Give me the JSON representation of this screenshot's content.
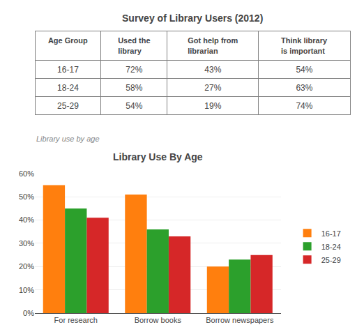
{
  "chart_data": [
    {
      "type": "table",
      "title": "Survey of Library Users (2012)",
      "categories": [
        "Age Group",
        "Used the\nlibrary",
        "Got help from\nlibrarian",
        "Think library\nis important"
      ],
      "rows": [
        [
          "16-17",
          "72%",
          "43%",
          "54%"
        ],
        [
          "18-24",
          "58%",
          "27%",
          "63%"
        ],
        [
          "25-29",
          "54%",
          "19%",
          "74%"
        ]
      ]
    },
    {
      "type": "bar",
      "title": "Library Use By Age",
      "subtitle": "Library use by age",
      "categories": [
        "For research",
        "Borrow books",
        "Borrow newspapers"
      ],
      "series": [
        {
          "name": "16-17",
          "values": [
            55,
            51,
            20
          ]
        },
        {
          "name": "18-24",
          "values": [
            45,
            36,
            23
          ]
        },
        {
          "name": "25-29",
          "values": [
            41,
            33,
            25
          ]
        }
      ],
      "ylim": [
        0,
        60
      ],
      "yticks": [
        {
          "value": 0,
          "label": "0%"
        },
        {
          "value": 10,
          "label": "10%"
        },
        {
          "value": 20,
          "label": "20%"
        },
        {
          "value": 30,
          "label": "30%"
        },
        {
          "value": 40,
          "label": "40%"
        },
        {
          "value": 50,
          "label": "50%"
        },
        {
          "value": 60,
          "label": "60%"
        }
      ],
      "grid": true,
      "legend": "right"
    }
  ]
}
